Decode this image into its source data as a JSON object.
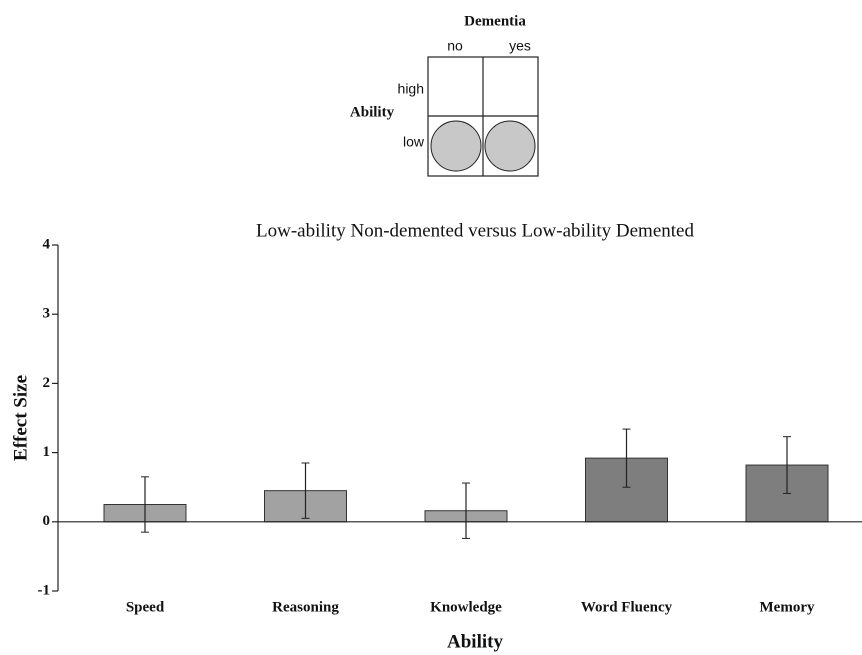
{
  "chart_data": {
    "type": "bar",
    "title": "Low-ability Non-demented versus Low-ability Demented",
    "xlabel": "Ability",
    "ylabel": "Effect Size",
    "categories": [
      "Speed",
      "Reasoning",
      "Knowledge",
      "Word Fluency",
      "Memory"
    ],
    "values": [
      0.25,
      0.45,
      0.16,
      0.92,
      0.82
    ],
    "errors": [
      0.4,
      0.4,
      0.4,
      0.42,
      0.41
    ],
    "colors": [
      "#a2a2a2",
      "#a2a2a2",
      "#a2a2a2",
      "#7e7e7e",
      "#7e7e7e"
    ],
    "ylim": [
      -1,
      4
    ],
    "yticks": [
      -1,
      0,
      1,
      2,
      3,
      4
    ],
    "inset": {
      "title": "Dementia",
      "columns": [
        "no",
        "yes"
      ],
      "row_label": "Ability",
      "rows": [
        "high",
        "low"
      ]
    }
  }
}
